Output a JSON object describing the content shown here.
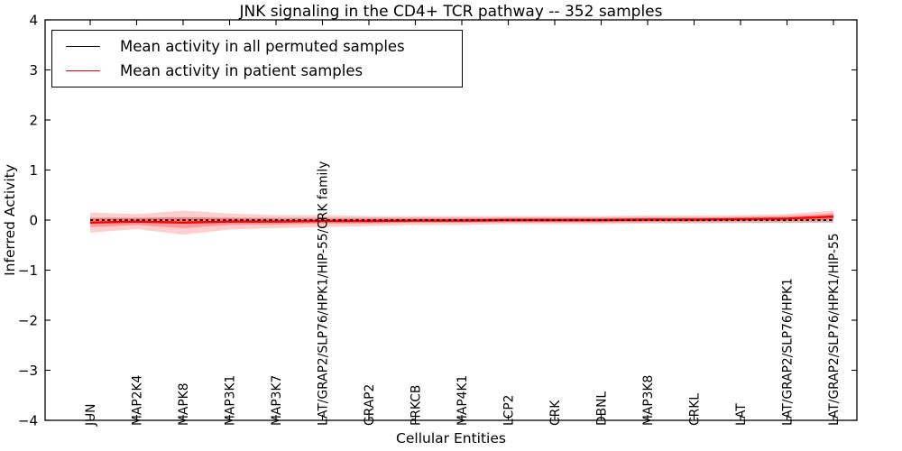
{
  "chart_data": {
    "type": "line",
    "title": "JNK signaling in the CD4+ TCR pathway -- 352 samples",
    "xlabel": "Cellular Entities",
    "ylabel": "Inferred Activity",
    "ylim": [
      -4,
      4
    ],
    "yticks": [
      4,
      3,
      2,
      1,
      0,
      -1,
      -2,
      -3,
      -4
    ],
    "ytick_labels": [
      "4",
      "3",
      "2",
      "1",
      "0",
      "−1",
      "−2",
      "−3",
      "−4"
    ],
    "grid": false,
    "legend_position": "upper-left",
    "categories": [
      "JUN",
      "MAP2K4",
      "MAPK8",
      "MAP3K1",
      "MAP3K7",
      "LAT/GRAP2/SLP76/HPK1/HIP-55/CRK family",
      "GRAP2",
      "PRKCB",
      "MAP4K1",
      "LCP2",
      "CRK",
      "DBNL",
      "MAP3K8",
      "CRKL",
      "LAT",
      "LAT/GRAP2/SLP76/HPK1",
      "LAT/GRAP2/SLP76/HPK1/HIP-55"
    ],
    "series": [
      {
        "name": "Mean activity in all permuted samples",
        "color": "#000000",
        "line_style": "dashed",
        "values": [
          0,
          0,
          0,
          0,
          0,
          0,
          0,
          0,
          0,
          0,
          0,
          0,
          0,
          0,
          0,
          0,
          0
        ]
      },
      {
        "name": "Mean activity in patient samples",
        "color": "#ff0000",
        "line_style": "solid",
        "values": [
          -0.05,
          -0.03,
          -0.05,
          -0.03,
          -0.03,
          -0.02,
          -0.02,
          -0.01,
          -0.01,
          0,
          0,
          0,
          0.01,
          0.01,
          0.02,
          0.03,
          0.07
        ]
      }
    ],
    "bands": [
      {
        "name": "permuted-range-band",
        "color": "rgba(128,128,128,0.32)",
        "center_series": 0,
        "half_widths": [
          0.05,
          0.05,
          0.05,
          0.05,
          0.05,
          0.05,
          0.05,
          0.05,
          0.05,
          0.05,
          0.05,
          0.05,
          0.05,
          0.05,
          0.05,
          0.05,
          0.05
        ]
      },
      {
        "name": "patient-outer-band",
        "color": "rgba(255,30,30,0.22)",
        "center_series": 1,
        "half_widths": [
          0.2,
          0.15,
          0.24,
          0.16,
          0.13,
          0.12,
          0.1,
          0.09,
          0.09,
          0.08,
          0.08,
          0.08,
          0.08,
          0.08,
          0.08,
          0.09,
          0.12
        ]
      },
      {
        "name": "patient-inner-band",
        "color": "rgba(255,30,30,0.30)",
        "center_series": 1,
        "half_widths": [
          0.09,
          0.07,
          0.11,
          0.07,
          0.06,
          0.05,
          0.05,
          0.04,
          0.04,
          0.04,
          0.04,
          0.04,
          0.04,
          0.04,
          0.04,
          0.05,
          0.06
        ]
      }
    ]
  }
}
